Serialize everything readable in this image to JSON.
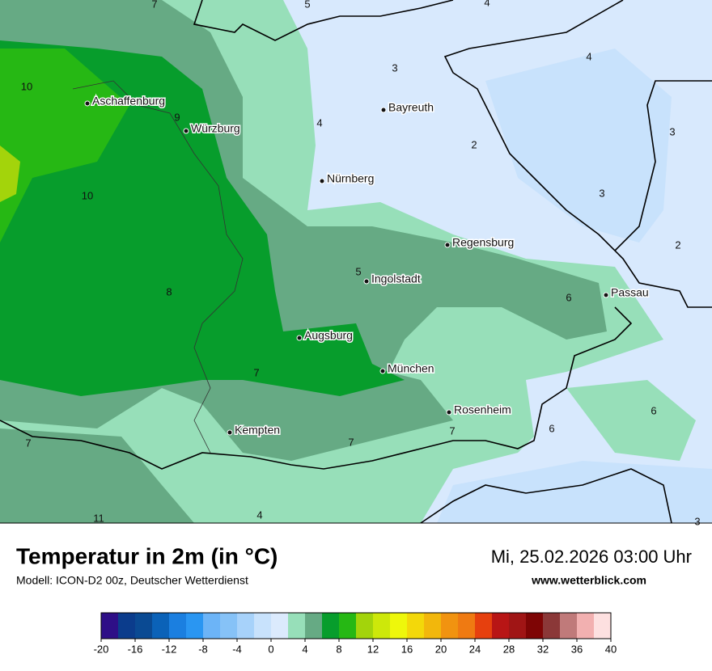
{
  "map": {
    "cities": [
      "Aschaffenburg",
      "Würzburg",
      "Bayreuth",
      "Nürnberg",
      "Regensburg",
      "Ingolstadt",
      "Passau",
      "Augsburg",
      "München",
      "Rosenheim",
      "Kempten"
    ],
    "values": [
      7,
      5,
      4,
      4,
      3,
      10,
      9,
      4,
      2,
      3,
      10,
      3,
      2,
      5,
      8,
      6,
      7,
      7,
      7,
      7,
      6,
      6,
      4,
      11,
      3
    ]
  },
  "footer": {
    "title": "Temperatur in 2m (in °C)",
    "model": "Modell: ICON-D2 00z, Deutscher Wetterdienst",
    "date": "Mi, 25.02.2026 03:00 Uhr",
    "website": "www.wetterblick.com"
  },
  "colorbar": {
    "range": [
      -20,
      40
    ],
    "colors": [
      "#2e0f87",
      "#0b3c8c",
      "#0a4a93",
      "#0b62b8",
      "#1b7fe0",
      "#2a96f2",
      "#6cb4f7",
      "#86c2f7",
      "#a7d2fa",
      "#c8e2fc",
      "#dbeafd",
      "#97dfb9",
      "#66aa84",
      "#079d2c",
      "#26b814",
      "#a3d40b",
      "#cde80a",
      "#eef70b",
      "#f3d80a",
      "#f2b70c",
      "#f19310",
      "#ef7a12",
      "#e6400e",
      "#b81515",
      "#a01515",
      "#7e0505",
      "#8b3838",
      "#c07a7a",
      "#f2b0b0",
      "#fde0e0"
    ],
    "ticks": [
      -20,
      -16,
      -12,
      -8,
      -4,
      0,
      4,
      8,
      12,
      16,
      20,
      24,
      28,
      32,
      36,
      40
    ]
  }
}
